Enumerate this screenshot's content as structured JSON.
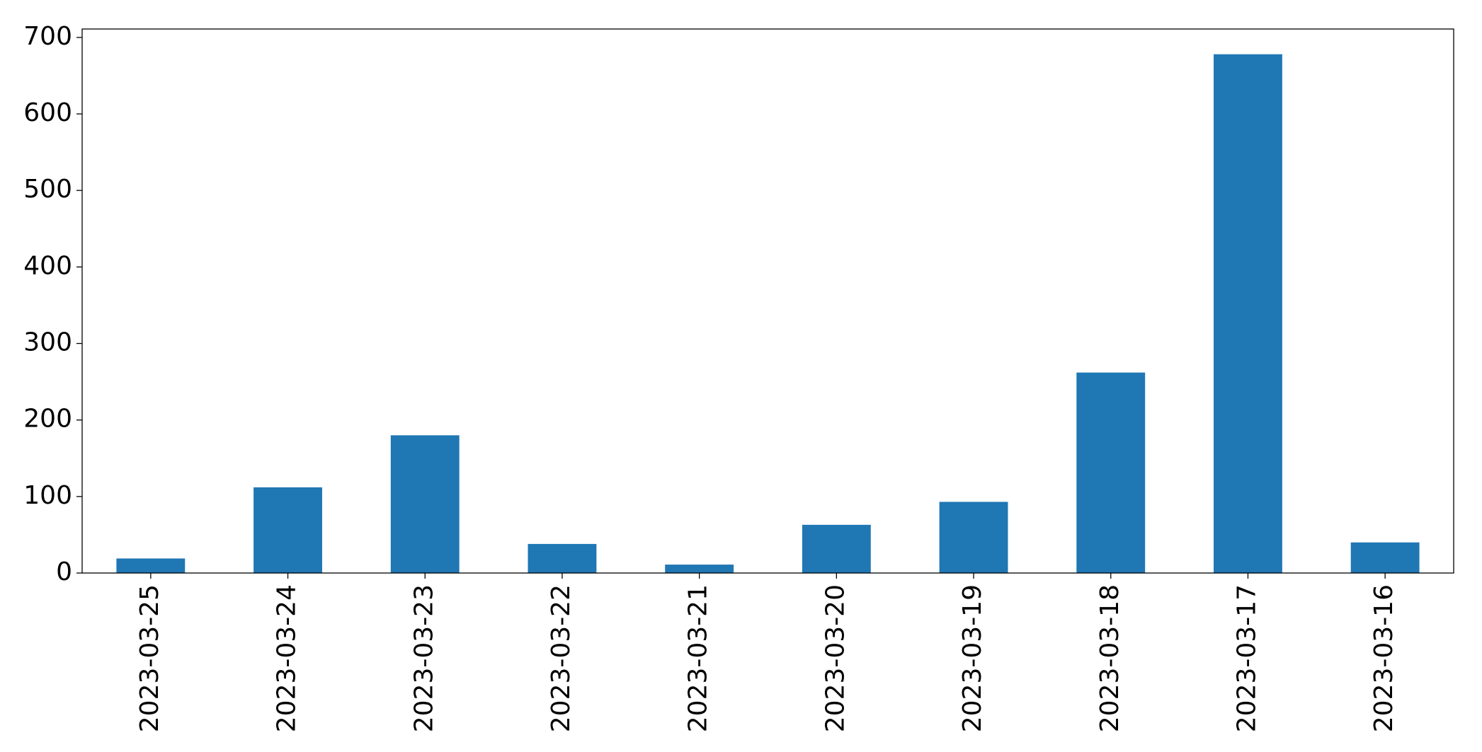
{
  "chart_data": {
    "type": "bar",
    "x": [
      "2023-03-25",
      "2023-03-24",
      "2023-03-23",
      "2023-03-22",
      "2023-03-21",
      "2023-03-20",
      "2023-03-19",
      "2023-03-18",
      "2023-03-17",
      "2023-03-16"
    ],
    "values": [
      19,
      112,
      180,
      38,
      11,
      63,
      93,
      262,
      678,
      40
    ],
    "color": "#1f77b4",
    "ylim": [
      0,
      711
    ],
    "yticks": [
      0,
      100,
      200,
      300,
      400,
      500,
      600,
      700
    ],
    "grid": false
  }
}
